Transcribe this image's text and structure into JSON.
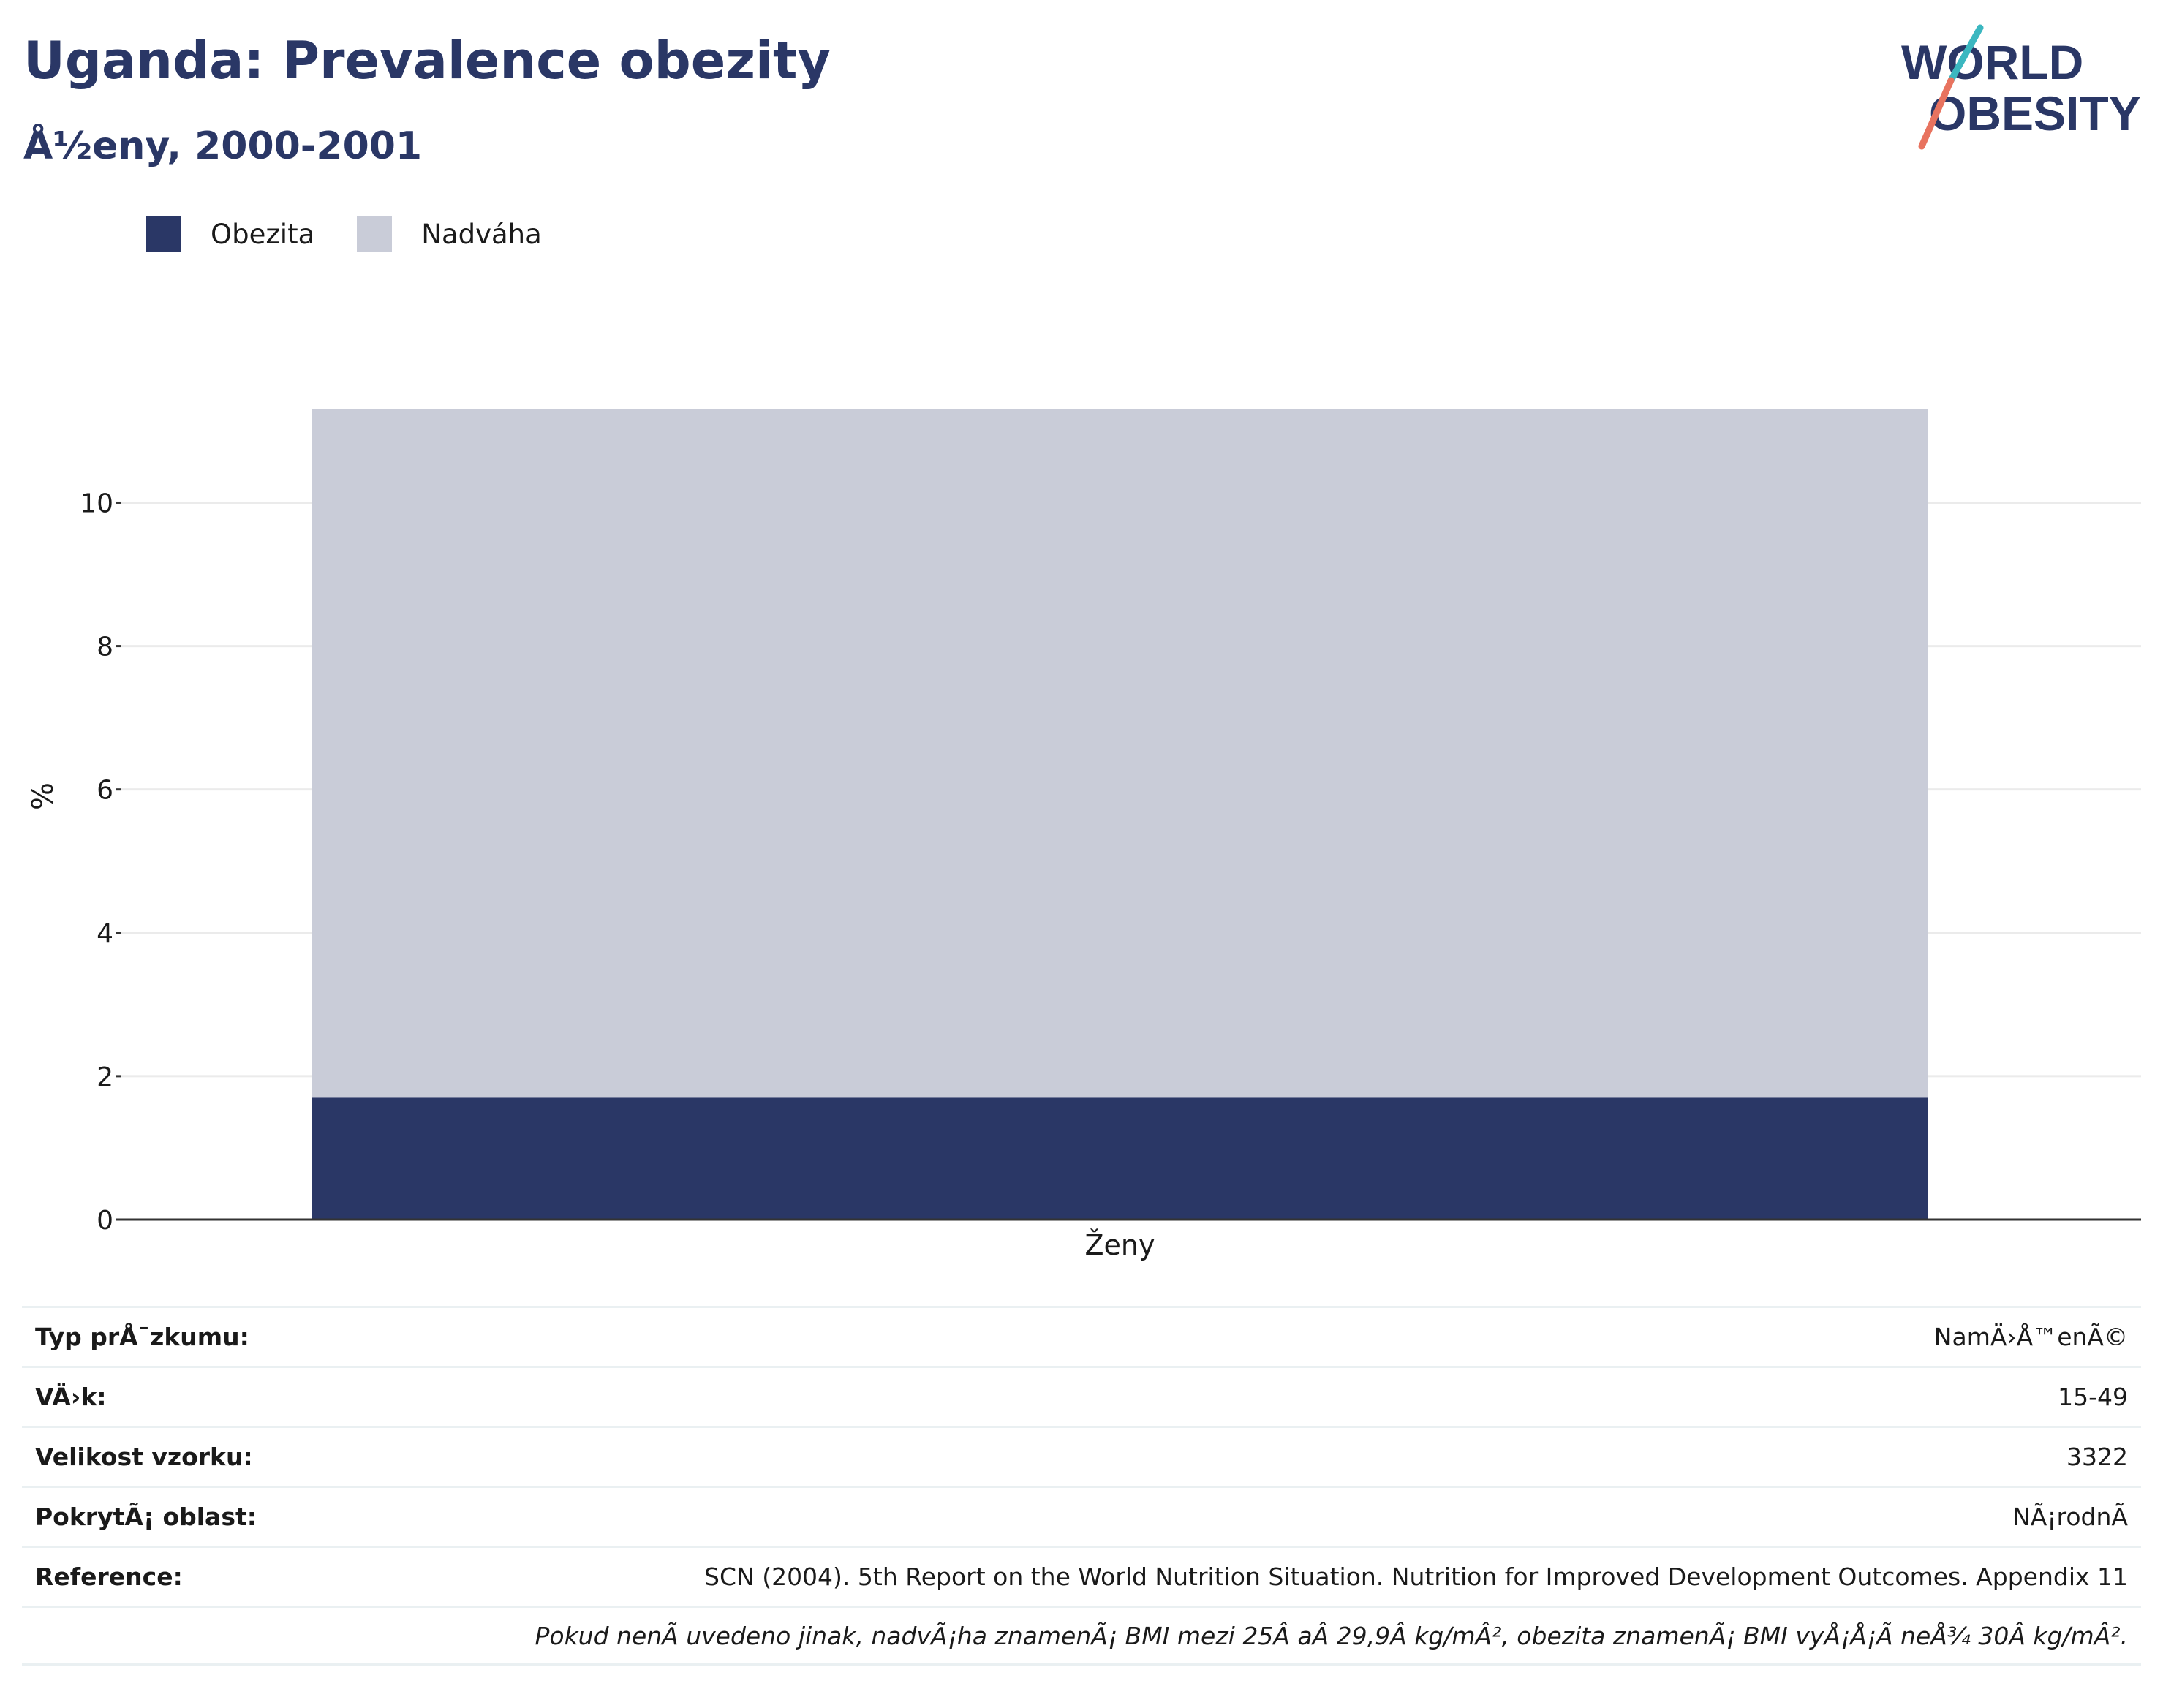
{
  "header": {
    "title": "Uganda: Prevalence obezity",
    "subtitle": "Å½eny, 2000-2001"
  },
  "logo": {
    "line1": "WORLD",
    "line2": "OBESITY",
    "colors": {
      "text": "#2a3766",
      "slash_teal": "#3bb7c0",
      "slash_coral": "#e8735f"
    }
  },
  "legend": [
    {
      "label": "Obezita",
      "color": "#2a3766"
    },
    {
      "label": "Nadváha",
      "color": "#c9ccd8"
    }
  ],
  "chart_data": {
    "type": "bar",
    "stacked": true,
    "categories": [
      "Ženy"
    ],
    "series": [
      {
        "name": "Obezita",
        "values": [
          1.7
        ],
        "color": "#2a3766"
      },
      {
        "name": "Nadváha",
        "values": [
          9.6
        ],
        "color": "#c9ccd8"
      }
    ],
    "ylabel": "%",
    "ylim": [
      0,
      11.3
    ],
    "yticks": [
      0,
      2,
      4,
      6,
      8,
      10
    ],
    "grid": true,
    "legend_position": "top-left"
  },
  "info": {
    "rows": [
      {
        "label": "Typ prÅ¯zkumu:",
        "value": "NamÄ›Å™enÃ©"
      },
      {
        "label": "VÄ›k:",
        "value": "15-49"
      },
      {
        "label": "Velikost vzorku:",
        "value": "3322"
      },
      {
        "label": "PokrytÃ¡ oblast:",
        "value": "NÃ¡rodnÃ"
      },
      {
        "label": "Reference:",
        "value": "SCN (2004). 5th Report on the World Nutrition Situation. Nutrition for Improved Development Outcomes. Appendix 11"
      }
    ],
    "note": "Pokud nenÃ uvedeno jinak, nadvÃ¡ha znamenÃ¡ BMI mezi 25Â aÂ 29,9Â kg/mÂ², obezita znamenÃ¡ BMI vyÅ¡Å¡Ã neÅ¾ 30Â kg/mÂ²."
  }
}
